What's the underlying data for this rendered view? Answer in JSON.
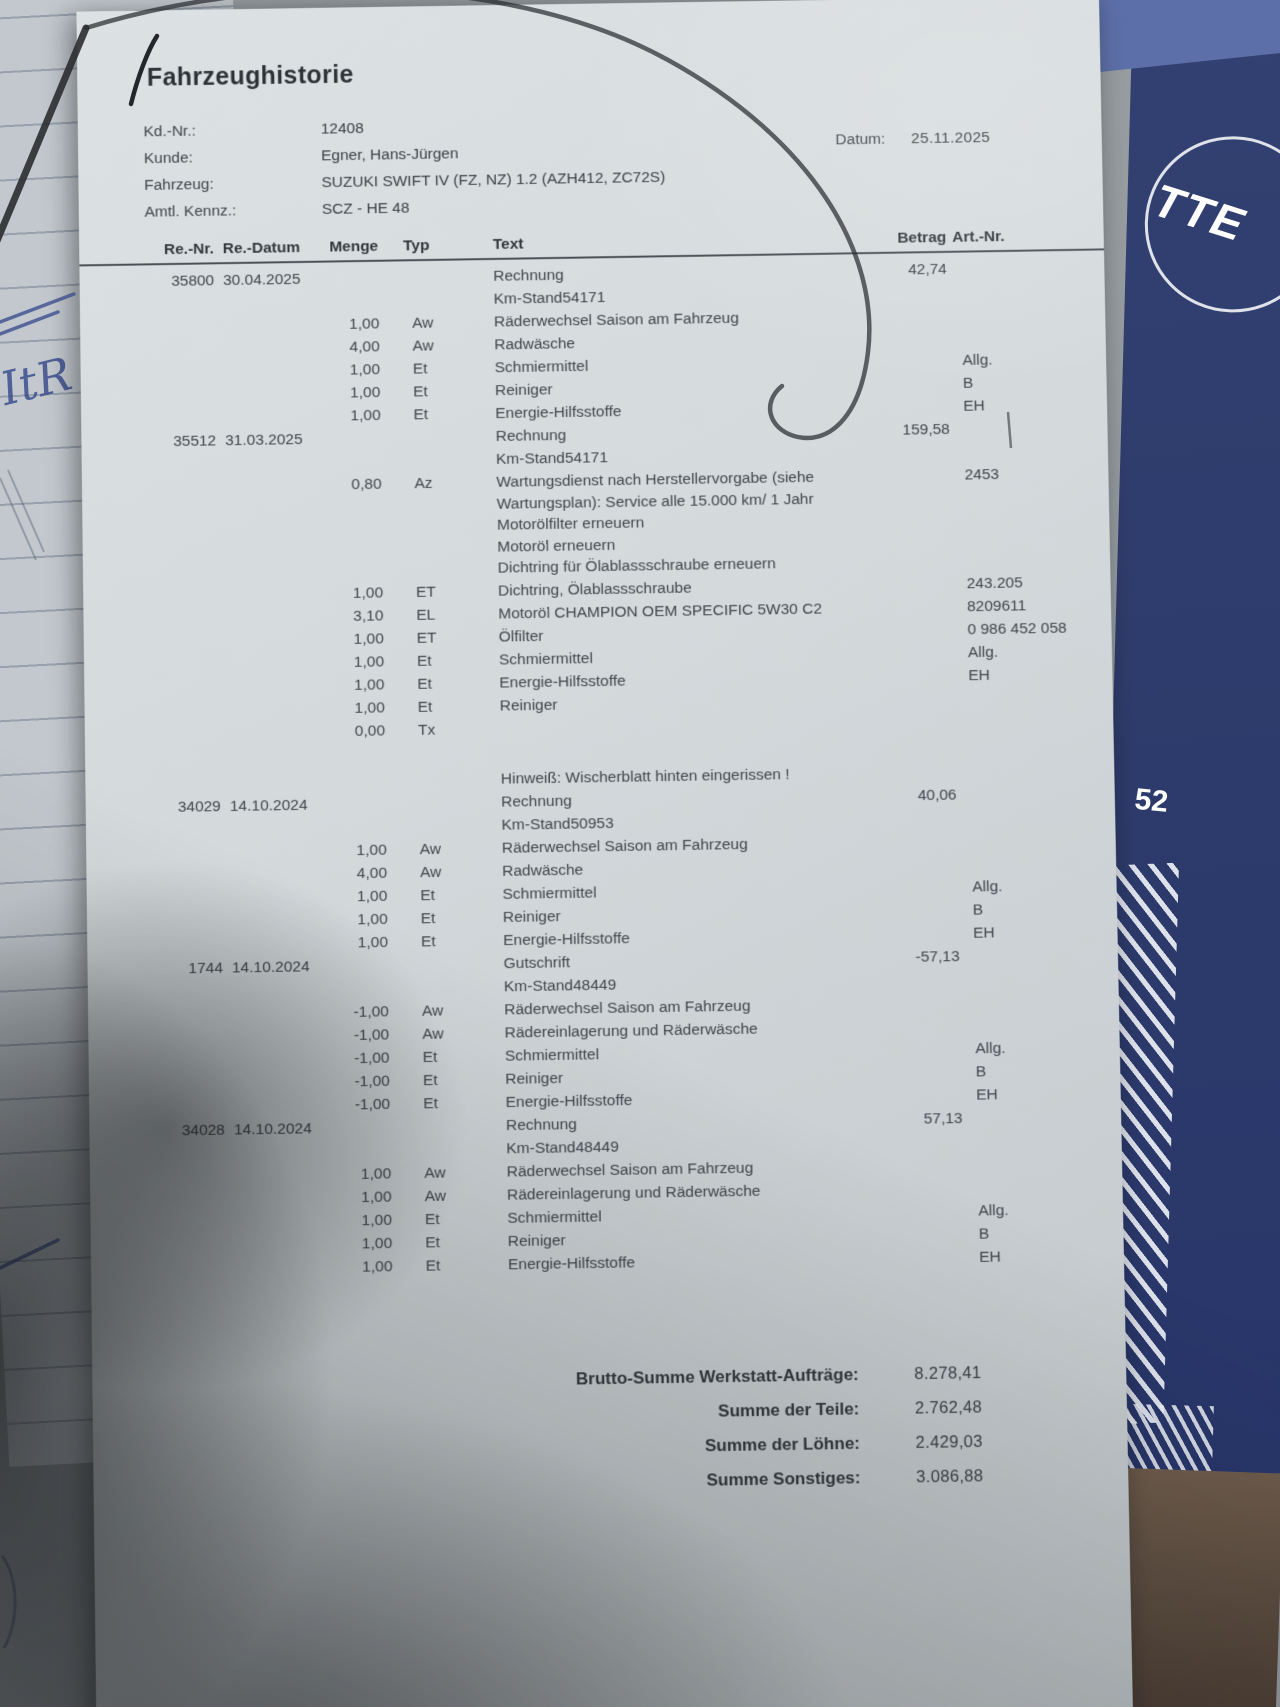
{
  "photo": {
    "colors": {
      "paper": "#d4dadc",
      "ink": "#41464c",
      "ruler_blue": "#2c3a6b",
      "handwriting_blue": "#3d4f8f"
    },
    "notepad_handwriting": "ItR",
    "ruler_number": "52",
    "ruler_brand_fragment": "TTE"
  },
  "document": {
    "title": "Fahrzeughistorie",
    "meta": [
      {
        "label": "Kd.-Nr.:",
        "value": "12408"
      },
      {
        "label": "Kunde:",
        "value": "Egner, Hans-Jürgen"
      },
      {
        "label": "Fahrzeug:",
        "value": "SUZUKI SWIFT IV (FZ, NZ) 1.2 (AZH412, ZC72S)"
      },
      {
        "label": "Amtl. Kennz.:",
        "value": "SCZ - HE 48"
      }
    ],
    "date_label": "Datum:",
    "date_value": "25.11.2025",
    "table": {
      "headers": [
        "Re.-Nr.",
        "Re.-Datum",
        "Menge",
        "Typ",
        "Text",
        "Betrag",
        "Art.-Nr."
      ],
      "rows": [
        {
          "renr": "35800",
          "redatum": "30.04.2025",
          "menge": "",
          "typ": "",
          "text": "Rechnung",
          "betrag": "42,74",
          "artnr": ""
        },
        {
          "renr": "",
          "redatum": "",
          "menge": "",
          "typ": "",
          "text": "Km-Stand54171",
          "betrag": "",
          "artnr": ""
        },
        {
          "renr": "",
          "redatum": "",
          "menge": "1,00",
          "typ": "Aw",
          "text": "Räderwechsel Saison am Fahrzeug",
          "betrag": "",
          "artnr": ""
        },
        {
          "renr": "",
          "redatum": "",
          "menge": "4,00",
          "typ": "Aw",
          "text": "Radwäsche",
          "betrag": "",
          "artnr": ""
        },
        {
          "renr": "",
          "redatum": "",
          "menge": "1,00",
          "typ": "Et",
          "text": "Schmiermittel",
          "betrag": "",
          "artnr": "Allg."
        },
        {
          "renr": "",
          "redatum": "",
          "menge": "1,00",
          "typ": "Et",
          "text": "Reiniger",
          "betrag": "",
          "artnr": "B"
        },
        {
          "renr": "",
          "redatum": "",
          "menge": "1,00",
          "typ": "Et",
          "text": "Energie-Hilfsstoffe",
          "betrag": "",
          "artnr": "EH"
        },
        {
          "renr": "35512",
          "redatum": "31.03.2025",
          "menge": "",
          "typ": "",
          "text": "Rechnung",
          "betrag": "159,58",
          "artnr": ""
        },
        {
          "renr": "",
          "redatum": "",
          "menge": "",
          "typ": "",
          "text": "Km-Stand54171",
          "betrag": "",
          "artnr": ""
        },
        {
          "renr": "",
          "redatum": "",
          "menge": "0,80",
          "typ": "Az",
          "text": "Wartungsdienst nach Herstellervorgabe (siehe\nWartungsplan): Service alle 15.000 km/ 1 Jahr\nMotorölfilter erneuern\nMotoröl erneuern\nDichtring für Ölablassschraube erneuern",
          "betrag": "",
          "artnr": "2453"
        },
        {
          "renr": "",
          "redatum": "",
          "menge": "1,00",
          "typ": "ET",
          "text": "Dichtring, Ölablassschraube",
          "betrag": "",
          "artnr": "243.205"
        },
        {
          "renr": "",
          "redatum": "",
          "menge": "3,10",
          "typ": "EL",
          "text": "Motoröl CHAMPION OEM SPECIFIC 5W30 C2",
          "betrag": "",
          "artnr": "8209611"
        },
        {
          "renr": "",
          "redatum": "",
          "menge": "1,00",
          "typ": "ET",
          "text": "Ölfilter",
          "betrag": "",
          "artnr": "0 986 452 058"
        },
        {
          "renr": "",
          "redatum": "",
          "menge": "1,00",
          "typ": "Et",
          "text": "Schmiermittel",
          "betrag": "",
          "artnr": "Allg."
        },
        {
          "renr": "",
          "redatum": "",
          "menge": "1,00",
          "typ": "Et",
          "text": "Energie-Hilfsstoffe",
          "betrag": "",
          "artnr": "EH"
        },
        {
          "renr": "",
          "redatum": "",
          "menge": "1,00",
          "typ": "Et",
          "text": "Reiniger",
          "betrag": "",
          "artnr": ""
        },
        {
          "renr": "",
          "redatum": "",
          "menge": "0,00",
          "typ": "Tx",
          "text": "",
          "betrag": "",
          "artnr": ""
        },
        {
          "renr": "",
          "redatum": "",
          "menge": "",
          "typ": "",
          "text": "Hinweiß: Wischerblatt hinten eingerissen !",
          "betrag": "",
          "artnr": "",
          "cls": "gap"
        },
        {
          "renr": "34029",
          "redatum": "14.10.2024",
          "menge": "",
          "typ": "",
          "text": "Rechnung",
          "betrag": "40,06",
          "artnr": ""
        },
        {
          "renr": "",
          "redatum": "",
          "menge": "",
          "typ": "",
          "text": "Km-Stand50953",
          "betrag": "",
          "artnr": ""
        },
        {
          "renr": "",
          "redatum": "",
          "menge": "1,00",
          "typ": "Aw",
          "text": "Räderwechsel Saison am Fahrzeug",
          "betrag": "",
          "artnr": ""
        },
        {
          "renr": "",
          "redatum": "",
          "menge": "4,00",
          "typ": "Aw",
          "text": "Radwäsche",
          "betrag": "",
          "artnr": ""
        },
        {
          "renr": "",
          "redatum": "",
          "menge": "1,00",
          "typ": "Et",
          "text": "Schmiermittel",
          "betrag": "",
          "artnr": "Allg."
        },
        {
          "renr": "",
          "redatum": "",
          "menge": "1,00",
          "typ": "Et",
          "text": "Reiniger",
          "betrag": "",
          "artnr": "B"
        },
        {
          "renr": "",
          "redatum": "",
          "menge": "1,00",
          "typ": "Et",
          "text": "Energie-Hilfsstoffe",
          "betrag": "",
          "artnr": "EH"
        },
        {
          "renr": "1744",
          "redatum": "14.10.2024",
          "menge": "",
          "typ": "",
          "text": "Gutschrift",
          "betrag": "-57,13",
          "artnr": ""
        },
        {
          "renr": "",
          "redatum": "",
          "menge": "",
          "typ": "",
          "text": "Km-Stand48449",
          "betrag": "",
          "artnr": ""
        },
        {
          "renr": "",
          "redatum": "",
          "menge": "-1,00",
          "typ": "Aw",
          "text": "Räderwechsel Saison am Fahrzeug",
          "betrag": "",
          "artnr": ""
        },
        {
          "renr": "",
          "redatum": "",
          "menge": "-1,00",
          "typ": "Aw",
          "text": "Rädereinlagerung und Räderwäsche",
          "betrag": "",
          "artnr": ""
        },
        {
          "renr": "",
          "redatum": "",
          "menge": "-1,00",
          "typ": "Et",
          "text": "Schmiermittel",
          "betrag": "",
          "artnr": "Allg."
        },
        {
          "renr": "",
          "redatum": "",
          "menge": "-1,00",
          "typ": "Et",
          "text": "Reiniger",
          "betrag": "",
          "artnr": "B"
        },
        {
          "renr": "",
          "redatum": "",
          "menge": "-1,00",
          "typ": "Et",
          "text": "Energie-Hilfsstoffe",
          "betrag": "",
          "artnr": "EH"
        },
        {
          "renr": "34028",
          "redatum": "14.10.2024",
          "menge": "",
          "typ": "",
          "text": "Rechnung",
          "betrag": "57,13",
          "artnr": ""
        },
        {
          "renr": "",
          "redatum": "",
          "menge": "",
          "typ": "",
          "text": "Km-Stand48449",
          "betrag": "",
          "artnr": ""
        },
        {
          "renr": "",
          "redatum": "",
          "menge": "1,00",
          "typ": "Aw",
          "text": "Räderwechsel Saison am Fahrzeug",
          "betrag": "",
          "artnr": ""
        },
        {
          "renr": "",
          "redatum": "",
          "menge": "1,00",
          "typ": "Aw",
          "text": "Rädereinlagerung und Räderwäsche",
          "betrag": "",
          "artnr": ""
        },
        {
          "renr": "",
          "redatum": "",
          "menge": "1,00",
          "typ": "Et",
          "text": "Schmiermittel",
          "betrag": "",
          "artnr": "Allg."
        },
        {
          "renr": "",
          "redatum": "",
          "menge": "1,00",
          "typ": "Et",
          "text": "Reiniger",
          "betrag": "",
          "artnr": "B"
        },
        {
          "renr": "",
          "redatum": "",
          "menge": "1,00",
          "typ": "Et",
          "text": "Energie-Hilfsstoffe",
          "betrag": "",
          "artnr": "EH"
        }
      ]
    },
    "totals": [
      {
        "label": "Brutto-Summe Werkstatt-Aufträge:",
        "value": "8.278,41"
      },
      {
        "label": "Summe der Teile:",
        "value": "2.762,48"
      },
      {
        "label": "Summe der Löhne:",
        "value": "2.429,03"
      },
      {
        "label": "Summe Sonstiges:",
        "value": "3.086,88"
      }
    ]
  }
}
